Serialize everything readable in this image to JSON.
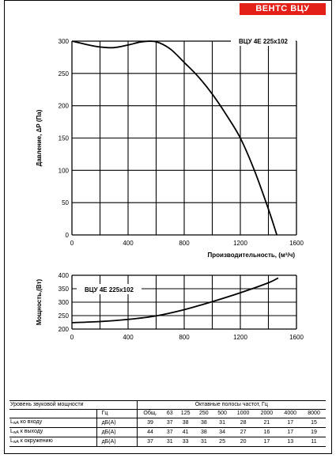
{
  "brand": "ВЕНТС ВЦУ",
  "chart_data": [
    {
      "type": "line",
      "label": "ВЦУ 4Е 225х102",
      "xlabel": "Производительность, (м³/ч)",
      "ylabel": "Давление, ΔP (Па)",
      "xlim": [
        0,
        1600
      ],
      "ylim": [
        0,
        300
      ],
      "xticks": [
        "0",
        "400",
        "800",
        "1200",
        "1600"
      ],
      "yticks": [
        "0",
        "50",
        "100",
        "150",
        "200",
        "250",
        "300"
      ],
      "grid": true,
      "x": [
        0,
        100,
        200,
        300,
        400,
        500,
        600,
        700,
        800,
        900,
        1000,
        1100,
        1200,
        1300,
        1400,
        1460
      ],
      "y": [
        300,
        295,
        291,
        290,
        294,
        299,
        299,
        288,
        267,
        245,
        218,
        186,
        150,
        100,
        40,
        0
      ]
    },
    {
      "type": "line",
      "label": "ВЦУ 4Е 225х102",
      "xlabel": "",
      "ylabel": "Мощность,(Вт)",
      "xlim": [
        0,
        1600
      ],
      "ylim": [
        200,
        400
      ],
      "xticks": [
        "0",
        "400",
        "800",
        "1200",
        "1600"
      ],
      "yticks": [
        "200",
        "250",
        "300",
        "350",
        "400"
      ],
      "grid": true,
      "x": [
        0,
        200,
        400,
        600,
        800,
        1000,
        1200,
        1400,
        1470
      ],
      "y": [
        224,
        228,
        236,
        249,
        272,
        302,
        335,
        372,
        390
      ]
    }
  ],
  "noise_table": {
    "title_left": "Уровень звуковой мощности",
    "title_right": "Октавные полосы частот, Гц",
    "unit_header": "Гц",
    "columns": [
      "Общ.",
      "63",
      "125",
      "250",
      "500",
      "1000",
      "2000",
      "4000",
      "8000"
    ],
    "rows": [
      {
        "label_main": "L",
        "label_sub": "wA",
        "label_rest": " ко входу",
        "unit": "дБ(А)",
        "values": [
          "39",
          "37",
          "38",
          "38",
          "31",
          "28",
          "21",
          "17",
          "15"
        ]
      },
      {
        "label_main": "L",
        "label_sub": "wA",
        "label_rest": " к выходу",
        "unit": "дБ(А)",
        "values": [
          "44",
          "37",
          "41",
          "38",
          "34",
          "27",
          "16",
          "17",
          "19"
        ]
      },
      {
        "label_main": "L",
        "label_sub": "wA",
        "label_rest": " к окружению",
        "unit": "дБ(А)",
        "values": [
          "37",
          "31",
          "33",
          "31",
          "25",
          "20",
          "17",
          "13",
          "11"
        ]
      }
    ]
  }
}
